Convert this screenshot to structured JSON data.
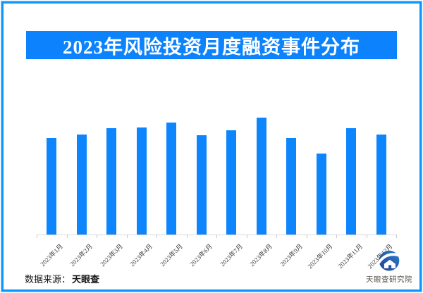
{
  "page": {
    "background": "#ffffff",
    "frame_color": "#1095ff"
  },
  "title": {
    "text": "2023年风险投资月度融资事件分布",
    "bg_color": "#0c83fc",
    "text_color": "#ffffff"
  },
  "chart_data": {
    "type": "bar",
    "title": "2023年风险投资月度融资事件分布",
    "categories": [
      "2023年1月",
      "2023年2月",
      "2023年3月",
      "2023年4月",
      "2023年5月",
      "2023年6月",
      "2023年7月",
      "2023年8月",
      "2023年9月",
      "2023年10月",
      "2023年11月",
      "2023年12月"
    ],
    "values": [
      137,
      142,
      151,
      152,
      159,
      141,
      148,
      166,
      137,
      115,
      151,
      142
    ],
    "value_unit": "relative bar height in px (chart shows no y-axis or value labels)",
    "xlabel": "",
    "ylabel": "",
    "y_axis_visible": false,
    "grid": false,
    "legend": false,
    "x_label_rotation_deg": 45,
    "bar_color": "#0d86fd",
    "axis_color": "#d9d9d9",
    "tick_color": "#c9c9c9",
    "label_color": "#3a3a3a"
  },
  "footer": {
    "source_label": "数据来源：",
    "source_value": "天眼查",
    "logo_icon": "tianyancha-eye-logo",
    "logo_caption": "天眼查研究院"
  }
}
